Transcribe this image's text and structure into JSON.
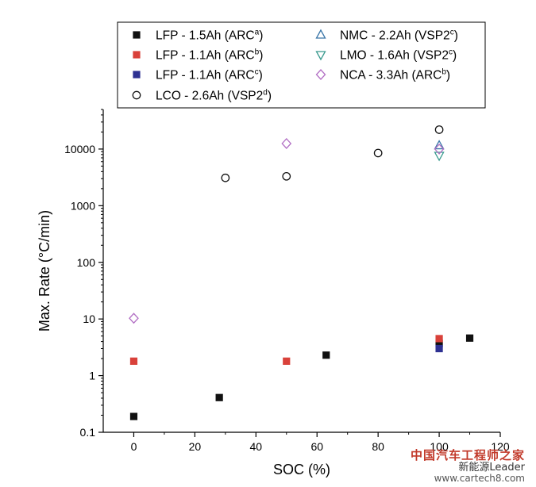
{
  "chart_data": {
    "type": "scatter",
    "xlabel": "SOC (%)",
    "ylabel": "Max. Rate (°C/min)",
    "xlim": [
      -10,
      120
    ],
    "ylim": [
      0.1,
      50000
    ],
    "yscale": "log",
    "xticks": [
      0,
      20,
      40,
      60,
      80,
      100,
      120
    ],
    "yticks": [
      0.1,
      1,
      10,
      100,
      1000,
      10000
    ],
    "ytick_labels": [
      "0.1",
      "1",
      "10",
      "100",
      "1000",
      "10000"
    ],
    "legend_position": "top",
    "series": [
      {
        "name": "LFP - 1.5Ah (ARC",
        "sup": "a",
        "marker": "square-filled",
        "color": "#111111",
        "points": [
          [
            0,
            0.19
          ],
          [
            28,
            0.41
          ],
          [
            63,
            2.3
          ],
          [
            100,
            3.7
          ],
          [
            110,
            4.6
          ]
        ]
      },
      {
        "name": "LFP - 1.1Ah (ARC",
        "sup": "b",
        "marker": "square-filled",
        "color": "#d9413a",
        "points": [
          [
            0,
            1.8
          ],
          [
            50,
            1.8
          ],
          [
            100,
            4.5
          ]
        ]
      },
      {
        "name": "LFP - 1.1Ah (ARC",
        "sup": "c",
        "marker": "square-filled",
        "color": "#2e3192",
        "points": [
          [
            100,
            3.0
          ]
        ]
      },
      {
        "name": "LCO - 2.6Ah (VSP2",
        "sup": "d",
        "marker": "circle-open",
        "color": "#111111",
        "points": [
          [
            30,
            3100
          ],
          [
            50,
            3300
          ],
          [
            80,
            8500
          ],
          [
            100,
            22000
          ]
        ]
      },
      {
        "name": "NMC - 2.2Ah (VSP2",
        "sup": "c",
        "marker": "triangle-up-open",
        "color": "#3a76a8",
        "points": [
          [
            100,
            11500
          ]
        ]
      },
      {
        "name": "LMO - 1.6Ah (VSP2",
        "sup": "c",
        "marker": "triangle-down-open",
        "color": "#3a9a8f",
        "points": [
          [
            100,
            7700
          ]
        ]
      },
      {
        "name": "NCA - 3.3Ah (ARC",
        "sup": "b",
        "marker": "diamond-open",
        "color": "#b26fc4",
        "points": [
          [
            0,
            10.3
          ],
          [
            50,
            12500
          ],
          [
            100,
            10000
          ]
        ]
      }
    ],
    "legend_close": ")"
  },
  "watermark": {
    "line1": "中国汽车工程师之家",
    "line2": "新能源Leader",
    "line3": "www.cartech8.com"
  }
}
